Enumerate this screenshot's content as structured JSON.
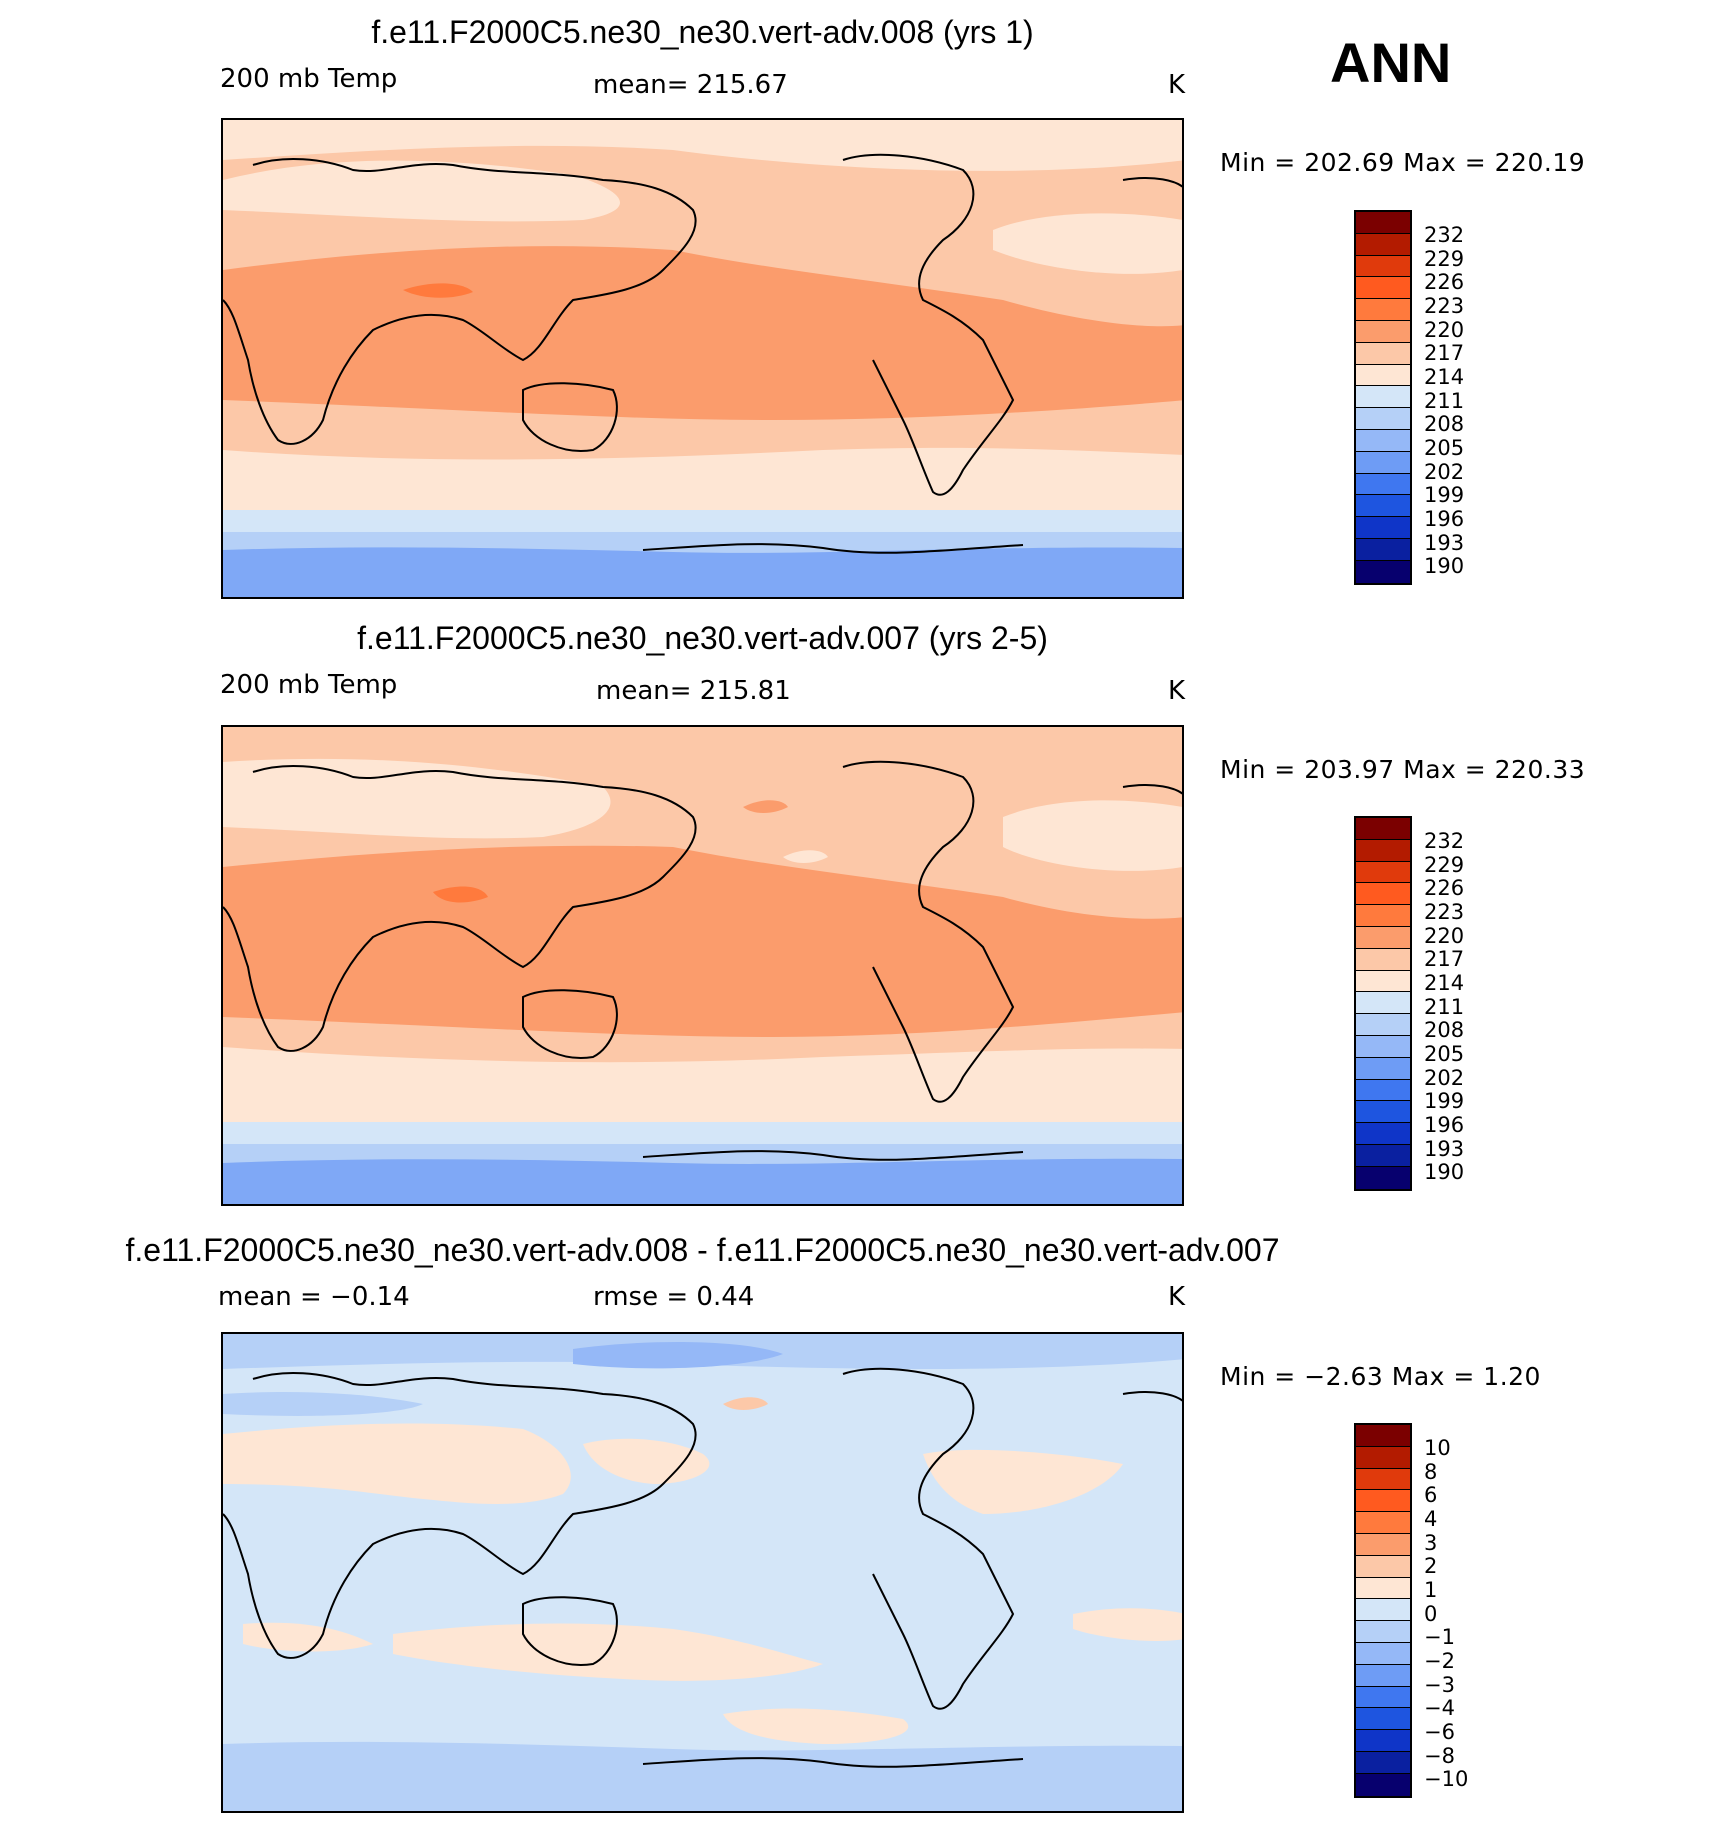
{
  "season": "ANN",
  "colors": {
    "abs_palette": [
      "#7b0000",
      "#b31b00",
      "#e03a0c",
      "#ff5a1f",
      "#ff7a3d",
      "#fb9c6c",
      "#fcc8a8",
      "#fee6d4",
      "#d4e6f8",
      "#b5d0f7",
      "#95b8f7",
      "#6e9cf5",
      "#3f77f0",
      "#1e55e0",
      "#0f35c8",
      "#0a20a0",
      "#07006e"
    ],
    "diff_palette": [
      "#7b0000",
      "#b31b00",
      "#e03a0c",
      "#ff5a1f",
      "#ff7a3d",
      "#fb9c6c",
      "#fcc8a8",
      "#fee6d4",
      "#d4e6f8",
      "#b5d0f7",
      "#95b8f7",
      "#6e9cf5",
      "#3f77f0",
      "#1e55e0",
      "#0f35c8",
      "#0a20a0",
      "#07006e"
    ]
  },
  "panels": [
    {
      "title": "f.e11.F2000C5.ne30_ne30.vert-adv.008 (yrs 1)",
      "left_label": "200 mb Temp",
      "center_label": "mean=  215.67",
      "units": "K",
      "min_max": "Min  =  202.69  Max  =  220.19",
      "colorbar_labels": [
        "232",
        "229",
        "226",
        "223",
        "220",
        "217",
        "214",
        "211",
        "208",
        "205",
        "202",
        "199",
        "196",
        "193",
        "190"
      ]
    },
    {
      "title": "f.e11.F2000C5.ne30_ne30.vert-adv.007 (yrs 2-5)",
      "left_label": "200 mb Temp",
      "center_label": "mean=  215.81",
      "units": "K",
      "min_max": "Min  =  203.97  Max  =  220.33",
      "colorbar_labels": [
        "232",
        "229",
        "226",
        "223",
        "220",
        "217",
        "214",
        "211",
        "208",
        "205",
        "202",
        "199",
        "196",
        "193",
        "190"
      ]
    },
    {
      "title": "f.e11.F2000C5.ne30_ne30.vert-adv.008 - f.e11.F2000C5.ne30_ne30.vert-adv.007",
      "left_label": "mean  =    −0.14",
      "center_label": "rmse  =     0.44",
      "units": "K",
      "min_max": "Min  =    −2.63  Max  =     1.20",
      "colorbar_labels": [
        "10",
        "8",
        "6",
        "4",
        "3",
        "2",
        "1",
        "0",
        "−1",
        "−2",
        "−3",
        "−4",
        "−6",
        "−8",
        "−10"
      ]
    }
  ]
}
